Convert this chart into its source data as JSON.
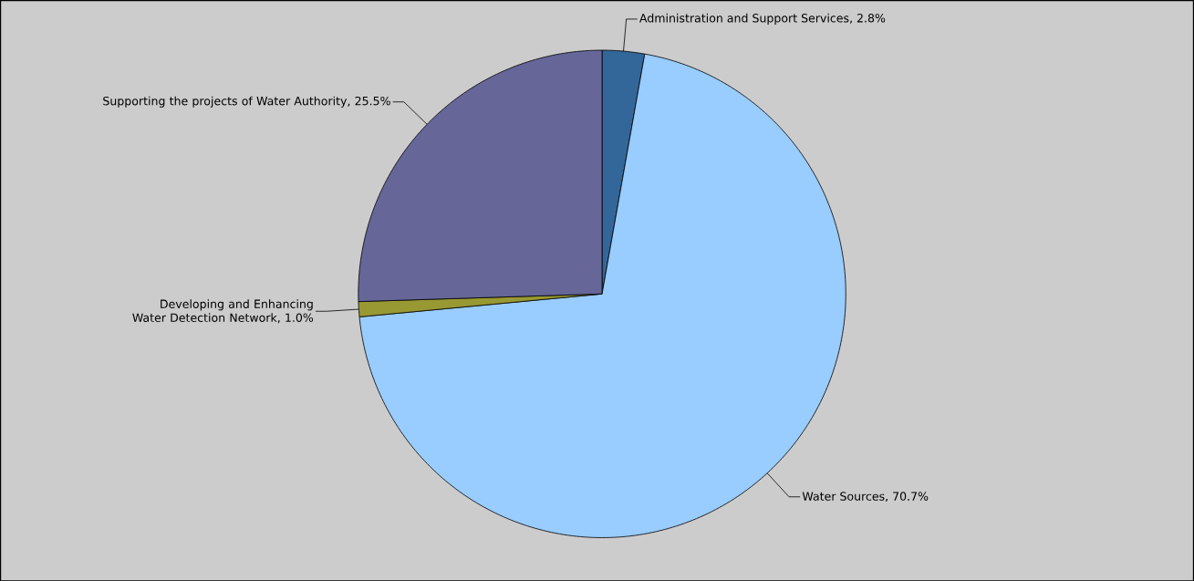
{
  "chart_data": {
    "type": "pie",
    "categories": [
      "Administration and Support Services, 2.8%",
      "Water Sources, 70.7%",
      "Developing and Enhancing Water Detection Network, 1.0%",
      "Supporting the projects of Water Authority, 25.5%"
    ],
    "values": [
      2.8,
      70.7,
      1.0,
      25.5
    ],
    "colors": [
      "#336699",
      "#99ccff",
      "#999933",
      "#666699"
    ]
  }
}
